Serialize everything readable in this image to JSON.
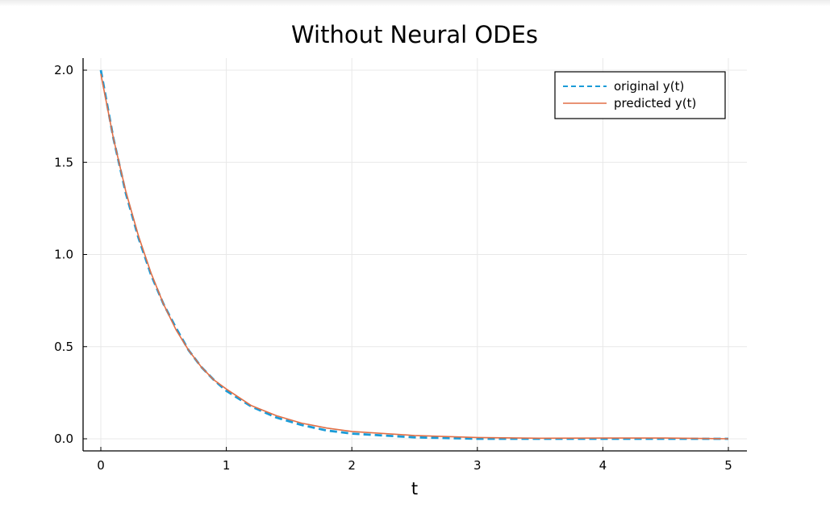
{
  "chart_data": {
    "type": "line",
    "title": "Without Neural ODEs",
    "xlabel": "t",
    "ylabel": "",
    "xlim": [
      0,
      5
    ],
    "ylim": [
      0,
      2
    ],
    "xticks": [
      0,
      1,
      2,
      3,
      4,
      5
    ],
    "yticks": [
      0.0,
      0.5,
      1.0,
      1.5,
      2.0
    ],
    "xtick_labels": [
      "0",
      "1",
      "2",
      "3",
      "4",
      "5"
    ],
    "ytick_labels": [
      "0.0",
      "0.5",
      "1.0",
      "1.5",
      "2.0"
    ],
    "grid": true,
    "legend": "top-right",
    "x": [
      0,
      0.1,
      0.2,
      0.3,
      0.4,
      0.5,
      0.6,
      0.7,
      0.8,
      0.9,
      1.0,
      1.2,
      1.4,
      1.6,
      1.8,
      2.0,
      2.5,
      3.0,
      3.5,
      4.0,
      4.5,
      5.0
    ],
    "series": [
      {
        "name": "original y(t)",
        "style": "dashed",
        "color": "#1a9bd7",
        "values": [
          2.0,
          1.63,
          1.33,
          1.09,
          0.89,
          0.73,
          0.6,
          0.48,
          0.39,
          0.32,
          0.26,
          0.175,
          0.115,
          0.075,
          0.045,
          0.028,
          0.008,
          0.0,
          0.0,
          0.0,
          0.0,
          0.0
        ]
      },
      {
        "name": "predicted y(t)",
        "style": "solid",
        "color": "#e26f46",
        "values": [
          1.98,
          1.63,
          1.34,
          1.1,
          0.9,
          0.73,
          0.59,
          0.48,
          0.39,
          0.32,
          0.27,
          0.18,
          0.125,
          0.085,
          0.058,
          0.04,
          0.018,
          0.007,
          0.003,
          0.004,
          0.004,
          0.0
        ]
      }
    ]
  }
}
